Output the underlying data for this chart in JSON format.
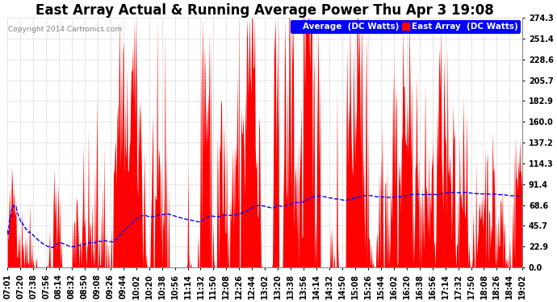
{
  "title": "East Array Actual & Running Average Power Thu Apr 3 19:08",
  "copyright": "Copyright 2014 Cartronics.com",
  "ylabel_right_ticks": [
    0.0,
    22.9,
    45.7,
    68.6,
    91.4,
    114.3,
    137.2,
    160.0,
    182.9,
    205.7,
    228.6,
    251.4,
    274.3
  ],
  "ymax": 274.3,
  "ymin": 0.0,
  "xtick_labels": [
    "07:01",
    "07:20",
    "07:38",
    "07:56",
    "08:14",
    "08:32",
    "08:50",
    "09:08",
    "09:26",
    "09:44",
    "10:02",
    "10:20",
    "10:38",
    "10:56",
    "11:14",
    "11:32",
    "11:50",
    "12:08",
    "12:26",
    "12:44",
    "13:02",
    "13:20",
    "13:38",
    "13:56",
    "14:14",
    "14:32",
    "14:50",
    "15:08",
    "15:26",
    "15:44",
    "16:02",
    "16:20",
    "16:38",
    "16:56",
    "17:14",
    "17:32",
    "17:50",
    "18:08",
    "18:26",
    "18:44",
    "19:02"
  ],
  "legend_avg_label": "Average  (DC Watts)",
  "legend_east_label": "East Array  (DC Watts)",
  "background_color": "#ffffff",
  "plot_bg_color": "#ffffff",
  "fill_color": "#ff0000",
  "avg_line_color": "#0000ff",
  "grid_color": "#cccccc",
  "title_fontsize": 12,
  "tick_fontsize": 7,
  "legend_fontsize": 8
}
